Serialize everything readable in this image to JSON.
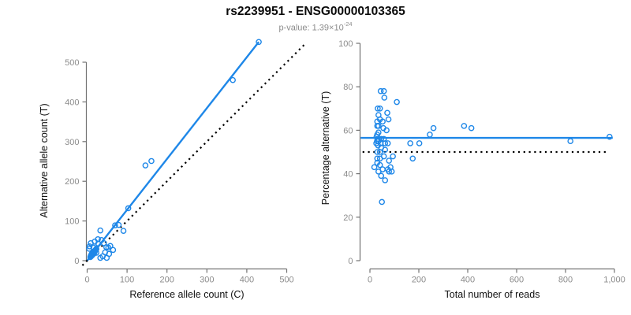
{
  "header": {
    "title": "rs2239951 - ENSG00000103365",
    "subtitle_main": "p-value: 1.39×10",
    "subtitle_sup": "-24"
  },
  "colors": {
    "accent_blue": "#1E87E8",
    "axis_gray": "#737373",
    "tick_label_gray": "#8c8c8c",
    "text_black": "#0a0a0a",
    "dotted_black": "#000000"
  },
  "chart_data": [
    {
      "type": "scatter",
      "name": "allele-counts-scatter",
      "xlabel": "Reference allele count (C)",
      "ylabel": "Alternative allele count (T)",
      "xlim": [
        -22,
        553
      ],
      "ylim": [
        -22,
        562
      ],
      "grid": false,
      "marker": "open-circle",
      "marker_color": "#1E87E8",
      "xticks": {
        "values": [
          0,
          100,
          200,
          300,
          400,
          500
        ],
        "labels": [
          "0",
          "100",
          "200",
          "300",
          "400",
          "500"
        ]
      },
      "yticks": {
        "values": [
          0,
          100,
          200,
          300,
          400,
          500
        ],
        "labels": [
          "0",
          "100",
          "200",
          "300",
          "400",
          "500"
        ]
      },
      "lines": [
        {
          "name": "regression-line",
          "style": "solid",
          "color": "#1E87E8",
          "x1": 0,
          "y1": 0,
          "x2": 430,
          "y2": 551
        },
        {
          "name": "identity-line",
          "style": "dotted",
          "color": "#000000",
          "x1": -12,
          "y1": -12,
          "x2": 548,
          "y2": 548
        }
      ],
      "points": [
        [
          8,
          9
        ],
        [
          9,
          12
        ],
        [
          10,
          11
        ],
        [
          10,
          14
        ],
        [
          11,
          13
        ],
        [
          11,
          16
        ],
        [
          12,
          15
        ],
        [
          12,
          18
        ],
        [
          13,
          14
        ],
        [
          13,
          17
        ],
        [
          14,
          16
        ],
        [
          14,
          19
        ],
        [
          15,
          18
        ],
        [
          15,
          21
        ],
        [
          16,
          20
        ],
        [
          16,
          23
        ],
        [
          17,
          18
        ],
        [
          17,
          21
        ],
        [
          18,
          23
        ],
        [
          19,
          22
        ],
        [
          19,
          24
        ],
        [
          20,
          26
        ],
        [
          21,
          27
        ],
        [
          22,
          28
        ],
        [
          23,
          30
        ],
        [
          5,
          30
        ],
        [
          6,
          36
        ],
        [
          9,
          44
        ],
        [
          16,
          33
        ],
        [
          19,
          48
        ],
        [
          23,
          20
        ],
        [
          27,
          54
        ],
        [
          28,
          43
        ],
        [
          33,
          7
        ],
        [
          36,
          52
        ],
        [
          39,
          11
        ],
        [
          42,
          44
        ],
        [
          45,
          21
        ],
        [
          48,
          34
        ],
        [
          49,
          7
        ],
        [
          53,
          33
        ],
        [
          55,
          17
        ],
        [
          58,
          37
        ],
        [
          65,
          27
        ],
        [
          33,
          76
        ],
        [
          70,
          89
        ],
        [
          79,
          90
        ],
        [
          91,
          75
        ],
        [
          103,
          132
        ],
        [
          146,
          240
        ],
        [
          161,
          251
        ],
        [
          365,
          455
        ],
        [
          430,
          551
        ]
      ]
    },
    {
      "type": "scatter",
      "name": "percentage-vs-reads-scatter",
      "xlabel": "Total number of reads",
      "ylabel": "Percentage alternative (T)",
      "xlim": [
        -40,
        1040
      ],
      "ylim": [
        0,
        100
      ],
      "grid": false,
      "marker": "open-circle",
      "marker_color": "#1E87E8",
      "xticks": {
        "values": [
          0,
          200,
          400,
          600,
          800,
          1000
        ],
        "labels": [
          "0",
          "200",
          "400",
          "600",
          "800",
          "1,000"
        ]
      },
      "yticks": {
        "values": [
          0,
          20,
          40,
          60,
          80,
          100
        ],
        "labels": [
          "0",
          "20",
          "40",
          "60",
          "80",
          "100"
        ]
      },
      "lines": [
        {
          "name": "mean-line",
          "style": "solid",
          "color": "#1E87E8",
          "x1": -38,
          "y1": 56.5,
          "x2": 993,
          "y2": 56.5
        },
        {
          "name": "expected-line",
          "style": "dotted",
          "color": "#000000",
          "x1": -30,
          "y1": 50,
          "x2": 965,
          "y2": 50
        }
      ],
      "points": [
        [
          44,
          78
        ],
        [
          57,
          78
        ],
        [
          59,
          75
        ],
        [
          110,
          73
        ],
        [
          32,
          70
        ],
        [
          41,
          70
        ],
        [
          71,
          68
        ],
        [
          35,
          67
        ],
        [
          76,
          65
        ],
        [
          30,
          64
        ],
        [
          41,
          65
        ],
        [
          52,
          64
        ],
        [
          30,
          62
        ],
        [
          35,
          62
        ],
        [
          55,
          61
        ],
        [
          68,
          60
        ],
        [
          260,
          61
        ],
        [
          35,
          59
        ],
        [
          30,
          58
        ],
        [
          245,
          58
        ],
        [
          27,
          57
        ],
        [
          46,
          56
        ],
        [
          57,
          56
        ],
        [
          31,
          56
        ],
        [
          29,
          55
        ],
        [
          35,
          55
        ],
        [
          26,
          54
        ],
        [
          44,
          54
        ],
        [
          62,
          54
        ],
        [
          73,
          54
        ],
        [
          165,
          54
        ],
        [
          202,
          54
        ],
        [
          33,
          53
        ],
        [
          46,
          52
        ],
        [
          62,
          51
        ],
        [
          30,
          50
        ],
        [
          41,
          50
        ],
        [
          57,
          48
        ],
        [
          94,
          48
        ],
        [
          175,
          47
        ],
        [
          30,
          47
        ],
        [
          41,
          47
        ],
        [
          78,
          46
        ],
        [
          30,
          45
        ],
        [
          84,
          43
        ],
        [
          52,
          42
        ],
        [
          18,
          43
        ],
        [
          41,
          44
        ],
        [
          73,
          42
        ],
        [
          35,
          41
        ],
        [
          78,
          41
        ],
        [
          89,
          41
        ],
        [
          46,
          39
        ],
        [
          62,
          37
        ],
        [
          49,
          27
        ],
        [
          385,
          62
        ],
        [
          415,
          61
        ],
        [
          820,
          55
        ],
        [
          980,
          57
        ]
      ]
    }
  ]
}
